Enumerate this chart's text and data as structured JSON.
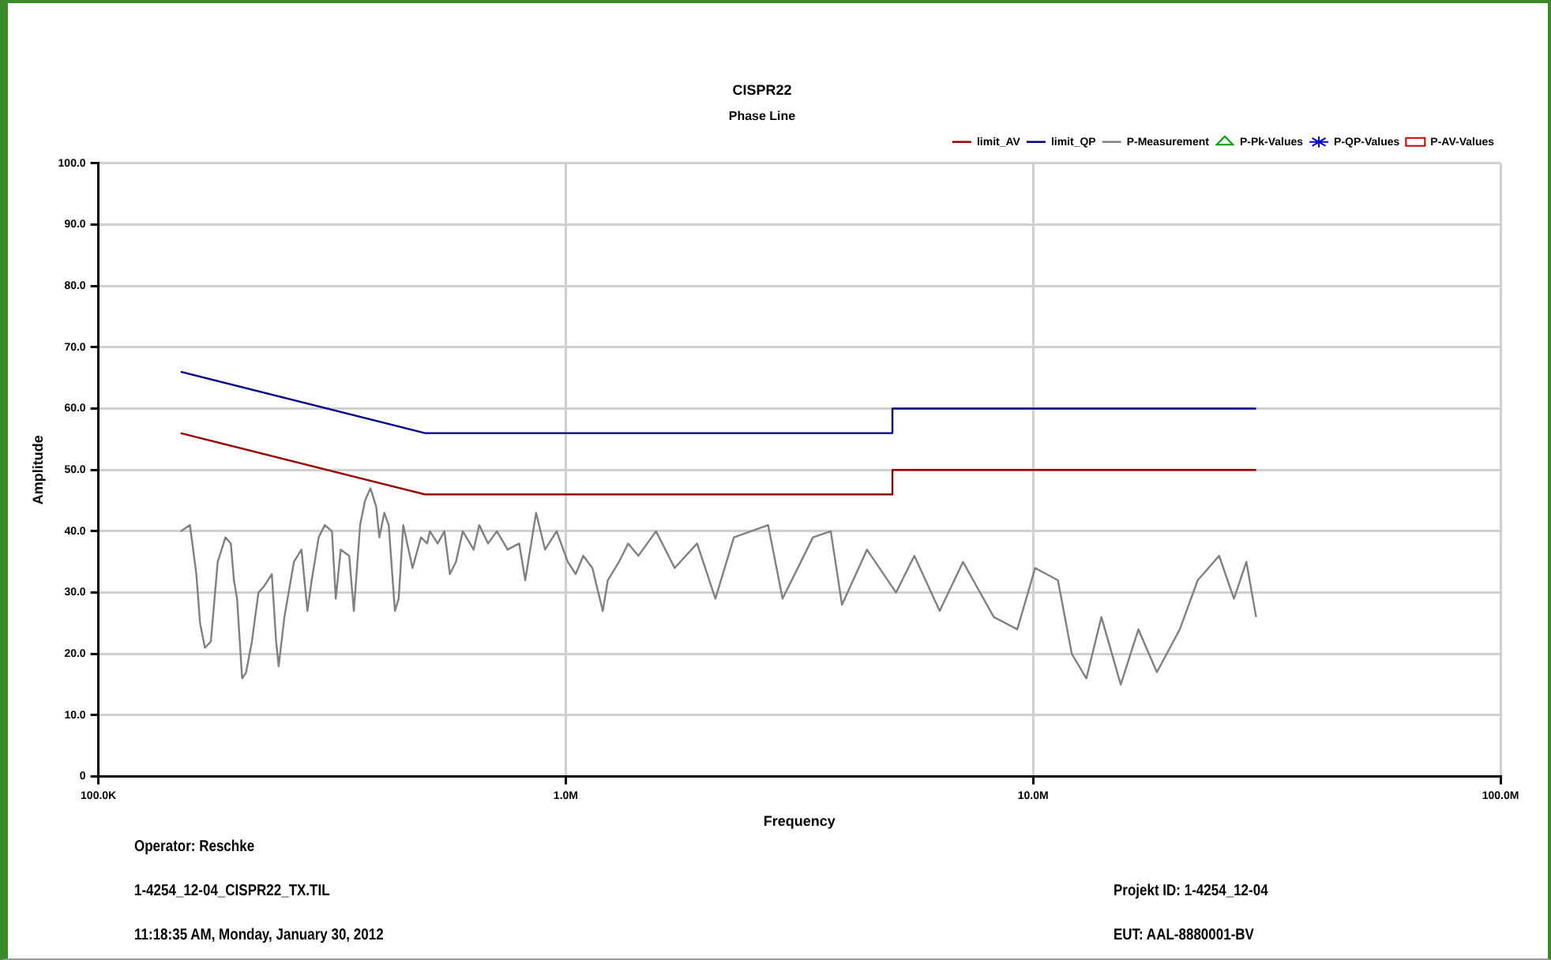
{
  "chart_data": {
    "type": "line",
    "title": "CISPR22",
    "subtitle": "Phase Line",
    "xlabel": "Frequency",
    "ylabel": "Amplitude",
    "log": "x",
    "grid": true,
    "legend": "top right",
    "marker": "none",
    "xlim": [
      100000,
      100000000
    ],
    "xticks": [
      {
        "value": 100000,
        "label": "100.0K"
      },
      {
        "value": 1000000,
        "label": "1.0M"
      },
      {
        "value": 10000000,
        "label": "10.0M"
      },
      {
        "value": 100000000,
        "label": "100.0M"
      }
    ],
    "ylim": [
      0,
      100
    ],
    "yticks": [
      {
        "value": 0,
        "label": "0"
      },
      {
        "value": 10,
        "label": "10.0"
      },
      {
        "value": 20,
        "label": "20.0"
      },
      {
        "value": 30,
        "label": "30.0"
      },
      {
        "value": 40,
        "label": "40.0"
      },
      {
        "value": 50,
        "label": "50.0"
      },
      {
        "value": 60,
        "label": "60.0"
      },
      {
        "value": 70,
        "label": "70.0"
      },
      {
        "value": 80,
        "label": "80.0"
      },
      {
        "value": 90,
        "label": "90.0"
      },
      {
        "value": 100,
        "label": "100.0"
      }
    ],
    "series": [
      {
        "name": "limit_AV",
        "color": "#990000",
        "x": [
          150000,
          500000,
          5000000,
          5000000,
          30000000
        ],
        "values": [
          56,
          46,
          46,
          50,
          50
        ]
      },
      {
        "name": "limit_QP",
        "color": "#000080",
        "x": [
          150000,
          500000,
          5000000,
          5000000,
          30000000
        ],
        "values": [
          66,
          56,
          56,
          60,
          60
        ]
      },
      {
        "name": "P-Measurement",
        "color": "#808080",
        "x": [
          150000,
          157000,
          162000,
          165000,
          169000,
          174000,
          180000,
          187000,
          192000,
          195000,
          198000,
          203000,
          207000,
          213000,
          220000,
          226000,
          235000,
          240000,
          243000,
          250000,
          262000,
          272000,
          280000,
          286000,
          296000,
          305000,
          316000,
          322000,
          330000,
          344000,
          352000,
          363000,
          372000,
          382000,
          393000,
          399000,
          409000,
          418000,
          431000,
          439000,
          449000,
          470000,
          490000,
          505000,
          512000,
          532000,
          550000,
          565000,
          582000,
          602000,
          635000,
          653000,
          682000,
          712000,
          751000,
          795000,
          819000,
          864000,
          903000,
          956000,
          1010000,
          1050000,
          1090000,
          1140000,
          1200000,
          1230000,
          1300000,
          1360000,
          1430000,
          1560000,
          1710000,
          1910000,
          2090000,
          2290000,
          2710000,
          2910000,
          3380000,
          3690000,
          3900000,
          4410000,
          5090000,
          5570000,
          6310000,
          7080000,
          8240000,
          9250000,
          10100000,
          11300000,
          12100000,
          13000000,
          14000000,
          15400000,
          16800000,
          18400000,
          20600000,
          22500000,
          25000000,
          26900000,
          28600000,
          30000000
        ],
        "values": [
          40,
          41,
          33,
          25,
          21,
          22,
          35,
          39,
          38,
          32,
          29,
          16,
          17,
          22,
          30,
          31,
          33,
          22,
          18,
          26,
          35,
          37,
          27,
          32,
          39,
          41,
          40,
          29,
          37,
          36,
          27,
          41,
          45,
          47,
          44,
          39,
          43,
          41,
          27,
          29,
          41,
          34,
          39,
          38,
          40,
          38,
          40,
          33,
          35,
          40,
          37,
          41,
          38,
          40,
          37,
          38,
          32,
          43,
          37,
          40,
          35,
          33,
          36,
          34,
          27,
          32,
          35,
          38,
          36,
          40,
          34,
          38,
          29,
          39,
          41,
          29,
          39,
          40,
          28,
          37,
          30,
          36,
          27,
          35,
          26,
          24,
          34,
          32,
          20,
          16,
          26,
          15,
          24,
          17,
          24,
          32,
          36,
          29,
          35,
          26
        ]
      },
      {
        "name": "P-Pk-Values",
        "type": "scatter",
        "color": "#009900",
        "marker": "triangle"
      },
      {
        "name": "P-QP-Values",
        "type": "scatter",
        "color": "#0000cc",
        "marker": "star"
      },
      {
        "name": "P-AV-Values",
        "type": "scatter",
        "color": "#cc0000",
        "marker": "square"
      }
    ],
    "annotations": [
      "Operator: Reschke",
      "1-4254_12-04_CISPR22_TX.TIL",
      "11:18:35 AM, Monday, January 30, 2012",
      "Projekt ID: 1-4254_12-04",
      "EUT: AAL-8880001-BV"
    ]
  }
}
